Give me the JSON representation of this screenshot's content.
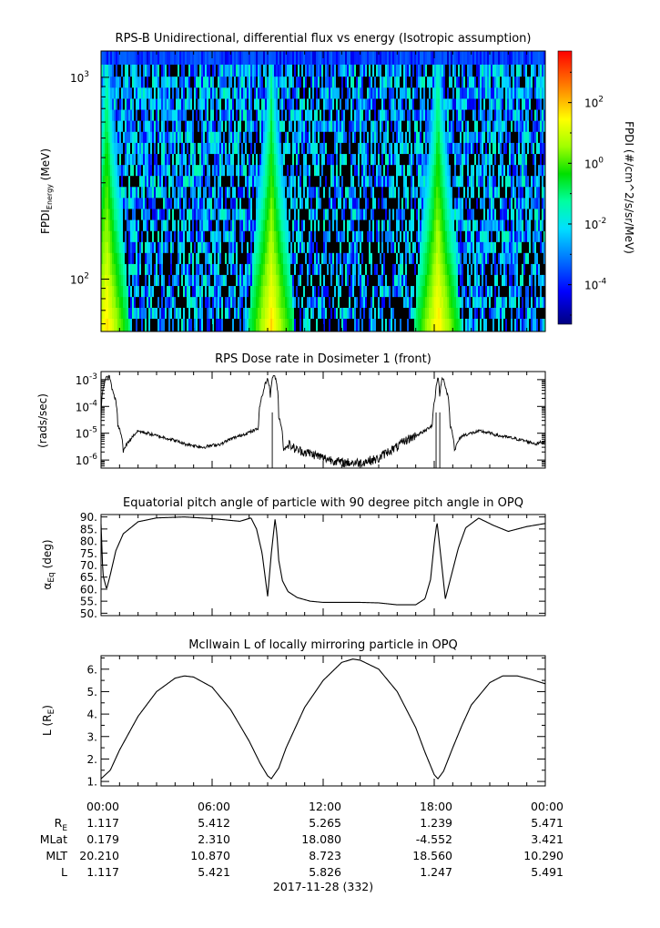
{
  "chart_data": [
    {
      "type": "heatmap",
      "title": "RPS-B  Unidirectional, differential flux vs energy (Isotropic assumption)",
      "ylabel": {
        "base": "FPDI",
        "sub": "Energy",
        "unit": " (MeV)"
      },
      "yscale": "log",
      "ylim": [
        55,
        1350
      ],
      "yticks": [
        {
          "value": 100,
          "base": "10",
          "exp": "2"
        },
        {
          "value": 1000,
          "base": "10",
          "exp": "3"
        }
      ],
      "energy_channels": [
        60,
        68,
        77,
        87,
        99,
        112,
        127,
        144,
        163,
        185,
        210,
        238,
        270,
        306,
        347,
        393,
        446,
        506,
        574,
        651,
        738,
        837,
        950,
        1077,
        1250
      ],
      "xlim_hours": [
        0,
        24
      ],
      "colorbar": {
        "label": "FPDI (#/cm^2/s/sr/MeV)",
        "scale": "log",
        "range": [
          5e-06,
          5000
        ],
        "ticks": [
          {
            "value": 0.0001,
            "base": "10",
            "exp": "-4"
          },
          {
            "value": 0.01,
            "base": "10",
            "exp": "-2"
          },
          {
            "value": 1,
            "base": "10",
            "exp": "0"
          },
          {
            "value": 100,
            "base": "10",
            "exp": "2"
          }
        ],
        "colors": [
          "#000080",
          "#0000ff",
          "#0080ff",
          "#00e0ff",
          "#00ffa0",
          "#00e000",
          "#a0ff00",
          "#ffff00",
          "#ff8000",
          "#ff0000"
        ]
      },
      "radiation_belt_crossings_hours": [
        0.3,
        9.2,
        18.2
      ],
      "background_flux_range": [
        3e-05,
        0.05
      ]
    },
    {
      "type": "line",
      "title": "RPS  Dose rate in Dosimeter 1 (front)",
      "ylabel": "(rads/sec)",
      "yscale": "log",
      "ylim": [
        5e-07,
        0.002
      ],
      "yticks": [
        {
          "value": 1e-06,
          "base": "10",
          "exp": "-6"
        },
        {
          "value": 1e-05,
          "base": "10",
          "exp": "-5"
        },
        {
          "value": 0.0001,
          "base": "10",
          "exp": "-4"
        },
        {
          "value": 0.001,
          "base": "10",
          "exp": "-3"
        }
      ],
      "x_hours": [
        0.0,
        0.3,
        0.45,
        0.6,
        0.9,
        1.2,
        1.6,
        2.0,
        3.0,
        4.5,
        5.5,
        6.5,
        7.5,
        8.2,
        8.5,
        8.75,
        9.0,
        9.15,
        9.3,
        9.4,
        9.6,
        9.85,
        10.1,
        10.5,
        11.0,
        12.0,
        13.0,
        14.0,
        15.0,
        16.0,
        17.0,
        17.5,
        17.9,
        18.05,
        18.2,
        18.3,
        18.45,
        18.65,
        18.85,
        19.1,
        19.5,
        20.5,
        21.5,
        22.5,
        23.5,
        24.0
      ],
      "y_values": [
        3e-05,
        0.0012,
        0.0013,
        0.0004,
        2e-05,
        2e-06,
        6e-06,
        1.2e-05,
        8e-06,
        4e-06,
        3e-06,
        4e-06,
        8e-06,
        1.2e-05,
        1.5e-05,
        0.0003,
        0.0011,
        0.0002,
        0.0015,
        0.0012,
        4e-05,
        2e-06,
        4e-06,
        2.5e-06,
        2e-06,
        1.2e-06,
        8e-07,
        8e-07,
        1.1e-06,
        3e-06,
        8e-06,
        1.2e-05,
        2e-05,
        0.0002,
        0.0012,
        0.0002,
        0.0012,
        0.0004,
        2e-05,
        2e-06,
        8e-06,
        1.2e-05,
        8e-06,
        6e-06,
        4e-06,
        5e-06
      ],
      "dropouts_hours": [
        9.25,
        18.1,
        18.3
      ]
    },
    {
      "type": "line",
      "title": "Equatorial pitch angle of particle with 90 degree pitch angle in OPQ",
      "ylabel": {
        "base": "α",
        "sub": "Eq",
        "unit": " (deg)"
      },
      "ylim": [
        49,
        91
      ],
      "yticks": [
        50,
        55,
        60,
        65,
        70,
        75,
        80,
        85,
        90
      ],
      "ytick_labels": [
        "50.",
        "55.",
        "60.",
        "65.",
        "70.",
        "75.",
        "80.",
        "85.",
        "90."
      ],
      "x_hours": [
        0.0,
        0.1,
        0.3,
        0.5,
        0.8,
        1.2,
        2.0,
        3.0,
        4.5,
        6.0,
        7.5,
        8.1,
        8.4,
        8.7,
        9.0,
        9.2,
        9.4,
        9.5,
        9.6,
        9.8,
        10.1,
        10.6,
        11.3,
        12.0,
        13.0,
        14.0,
        15.0,
        16.0,
        17.0,
        17.5,
        17.8,
        18.0,
        18.15,
        18.35,
        18.6,
        18.9,
        19.3,
        19.7,
        20.4,
        21.2,
        22.0,
        23.0,
        24.0
      ],
      "y_values": [
        87,
        66,
        60,
        66,
        76,
        83,
        88,
        89.6,
        90,
        89.3,
        88.2,
        89.6,
        85,
        75,
        57,
        75,
        89,
        83,
        72,
        63.5,
        59,
        56.5,
        55,
        54.5,
        54.5,
        54.5,
        54.3,
        53.5,
        53.5,
        56,
        64,
        79,
        88,
        74,
        56,
        65,
        77,
        85.5,
        89.5,
        86.5,
        84,
        86,
        87.3
      ]
    },
    {
      "type": "line",
      "title": "McIlwain L of locally mirroring particle in OPQ",
      "ylabel": {
        "base": "L (R",
        "sub": "E",
        "unit": ")"
      },
      "ylim": [
        0.8,
        6.6
      ],
      "yticks": [
        1,
        2,
        3,
        4,
        5,
        6
      ],
      "ytick_labels": [
        "1.",
        "2.",
        "3.",
        "4.",
        "5.",
        "6."
      ],
      "x_hours": [
        0.0,
        0.5,
        1.0,
        2.0,
        3.0,
        4.0,
        4.5,
        5.0,
        6.0,
        7.0,
        8.0,
        8.6,
        9.0,
        9.2,
        9.6,
        10.0,
        10.5,
        11.0,
        12.0,
        13.0,
        13.6,
        14.0,
        15.0,
        16.0,
        17.0,
        17.5,
        18.0,
        18.2,
        18.5,
        19.0,
        19.5,
        20.0,
        21.0,
        21.7,
        22.5,
        23.2,
        24.0
      ],
      "y_values": [
        1.12,
        1.5,
        2.4,
        3.9,
        5.0,
        5.6,
        5.7,
        5.65,
        5.2,
        4.2,
        2.8,
        1.8,
        1.25,
        1.12,
        1.6,
        2.5,
        3.4,
        4.3,
        5.5,
        6.3,
        6.45,
        6.4,
        6.0,
        5.0,
        3.4,
        2.3,
        1.3,
        1.12,
        1.45,
        2.5,
        3.5,
        4.4,
        5.4,
        5.7,
        5.7,
        5.55,
        5.35
      ]
    }
  ],
  "ephemeris": {
    "time_labels": [
      "00:00",
      "06:00",
      "12:00",
      "18:00",
      "00:00"
    ],
    "rows": [
      {
        "label": "R",
        "label_sub": "E",
        "values": [
          "1.117",
          "5.412",
          "5.265",
          "1.239",
          "5.471"
        ]
      },
      {
        "label": "MLat",
        "label_sub": "",
        "values": [
          "0.179",
          "2.310",
          "18.080",
          "-4.552",
          "3.421"
        ]
      },
      {
        "label": "MLT",
        "label_sub": "",
        "values": [
          "20.210",
          "10.870",
          "8.723",
          "18.560",
          "10.290"
        ]
      },
      {
        "label": "L",
        "label_sub": "",
        "values": [
          "1.117",
          "5.421",
          "5.826",
          "1.247",
          "5.491"
        ]
      }
    ],
    "date_label": "2017-11-28 (332)"
  }
}
